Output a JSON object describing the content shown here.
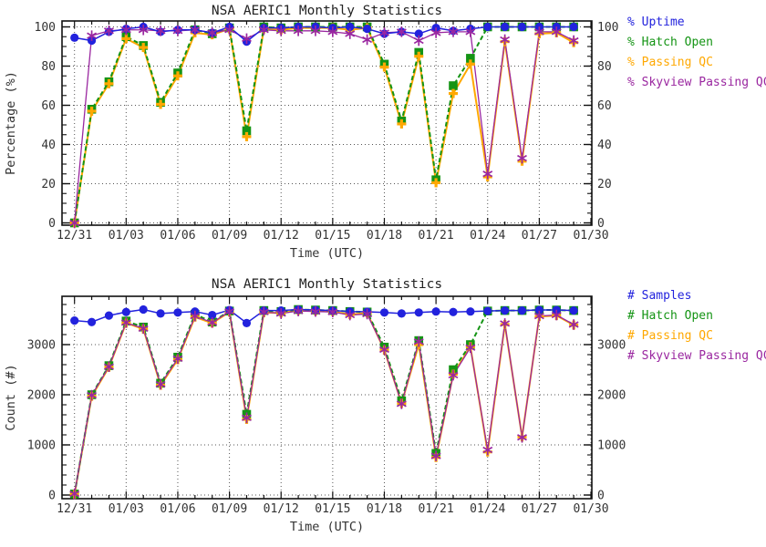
{
  "chart_data": {
    "type": "line",
    "x_categories": [
      "12/31",
      "01/01",
      "01/02",
      "01/03",
      "01/04",
      "01/05",
      "01/06",
      "01/07",
      "01/08",
      "01/09",
      "01/10",
      "01/11",
      "01/12",
      "01/13",
      "01/14",
      "01/15",
      "01/16",
      "01/17",
      "01/18",
      "01/19",
      "01/20",
      "01/21",
      "01/22",
      "01/23",
      "01/24",
      "01/25",
      "01/26",
      "01/27",
      "01/28",
      "01/29"
    ],
    "x_major_tick_labels": [
      "12/31",
      "01/03",
      "01/06",
      "01/09",
      "01/12",
      "01/15",
      "01/18",
      "01/21",
      "01/24",
      "01/27",
      "01/30"
    ],
    "x_major_tick_days": [
      0,
      3,
      6,
      9,
      12,
      15,
      18,
      21,
      24,
      27,
      30
    ],
    "charts": [
      {
        "title": "NSA AERIC1 Monthly Statistics",
        "xlabel": "Time (UTC)",
        "ylabel": "Percentage (%)",
        "y_major_ticks": [
          {
            "v": 0,
            "label": "0"
          },
          {
            "v": 20,
            "label": "20"
          },
          {
            "v": 40,
            "label": "40"
          },
          {
            "v": 60,
            "label": "60"
          },
          {
            "v": 80,
            "label": "80"
          },
          {
            "v": 100,
            "label": "100"
          }
        ],
        "y_minor_step": 5,
        "ylim": [
          0,
          103
        ],
        "grid": "dotted both axes",
        "legend_position": "right outside",
        "legend": [
          {
            "label": "% Uptime",
            "color": "#2222dd"
          },
          {
            "label": "% Hatch Open",
            "color": "#149414"
          },
          {
            "label": "% Passing QC",
            "color": "#ffa800"
          },
          {
            "label": "% Skyview Passing QC",
            "color": "#9a27a0"
          }
        ],
        "series": [
          {
            "name": "uptime",
            "color": "#2222dd",
            "marker": "circle",
            "dashed": false,
            "values": [
              94.5,
              93,
              97.5,
              99,
              100,
              97.5,
              98.5,
              98.5,
              97,
              100,
              92.5,
              99.5,
              99.5,
              100,
              100,
              99.5,
              100,
              99,
              96.5,
              97.5,
              96.5,
              99.5,
              98,
              99,
              100,
              100,
              100,
              100,
              100,
              100
            ]
          },
          {
            "name": "hatch_open",
            "color": "#149414",
            "marker": "square",
            "dashed": true,
            "values": [
              0,
              58,
              72,
              95,
              90.5,
              61.5,
              76.5,
              98.5,
              96.5,
              99.5,
              47,
              100,
              99.5,
              100,
              100,
              100,
              100,
              100,
              81,
              52,
              87,
              22,
              70,
              84,
              100,
              100,
              100,
              100,
              100,
              100
            ]
          },
          {
            "name": "passing_qc",
            "color": "#ffa800",
            "marker": "plus",
            "dashed": false,
            "values": [
              0,
              57,
              71,
              94,
              89.5,
              60.5,
              75,
              97,
              96,
              99,
              44,
              99,
              98.5,
              99.5,
              99.5,
              99.5,
              98.5,
              99.5,
              79.5,
              50.5,
              85,
              20.5,
              66,
              81,
              23.5,
              92.5,
              31.5,
              96.5,
              97,
              92
            ]
          },
          {
            "name": "skyview_passing_qc",
            "color": "#9a27a0",
            "marker": "star6",
            "dashed": false,
            "values": [
              0,
              95.5,
              98,
              98.5,
              98.5,
              98,
              98,
              98.5,
              97,
              98.5,
              94,
              98.5,
              98,
              98,
              98,
              97.5,
              96.5,
              93.5,
              97,
              97.5,
              93,
              97,
              97.5,
              97.5,
              25,
              93.5,
              33,
              97.5,
              97.5,
              93
            ]
          }
        ]
      },
      {
        "title": "NSA AERIC1 Monthly Statistics",
        "xlabel": "Time (UTC)",
        "ylabel": "Count (#)",
        "y_major_ticks": [
          {
            "v": 0,
            "label": "0"
          },
          {
            "v": 1000,
            "label": "1000"
          },
          {
            "v": 2000,
            "label": "2000"
          },
          {
            "v": 3000,
            "label": "3000"
          }
        ],
        "y_minor_step": 200,
        "ylim": [
          0,
          3960
        ],
        "grid": "dotted both axes",
        "legend_position": "right outside",
        "legend": [
          {
            "label": "# Samples",
            "color": "#2222dd"
          },
          {
            "label": "# Hatch Open",
            "color": "#149414"
          },
          {
            "label": "# Passing QC",
            "color": "#ffa800"
          },
          {
            "label": "# Skyview Passing QC",
            "color": "#9a27a0"
          }
        ],
        "series": [
          {
            "name": "samples",
            "color": "#2222dd",
            "marker": "circle",
            "dashed": false,
            "values": [
              3480,
              3450,
              3580,
              3650,
              3700,
              3620,
              3640,
              3660,
              3590,
              3690,
              3430,
              3680,
              3680,
              3700,
              3690,
              3680,
              3660,
              3655,
              3640,
              3620,
              3640,
              3660,
              3650,
              3660,
              3670,
              3680,
              3680,
              3690,
              3690,
              3680
            ]
          },
          {
            "name": "hatch_open",
            "color": "#149414",
            "marker": "square",
            "dashed": true,
            "values": [
              20,
              2000,
              2580,
              3470,
              3350,
              2230,
              2750,
              3605,
              3450,
              3670,
              1610,
              3680,
              3660,
              3700,
              3690,
              3680,
              3660,
              3650,
              2950,
              1880,
              3080,
              830,
              2500,
              3000,
              3670,
              3680,
              3680,
              3690,
              3690,
              3680
            ]
          },
          {
            "name": "passing_qc",
            "color": "#ffa800",
            "marker": "plus",
            "dashed": false,
            "values": [
              15,
              1970,
              2550,
              3430,
              3310,
              2190,
              2700,
              3550,
              3430,
              3650,
              1510,
              3640,
              3630,
              3680,
              3670,
              3660,
              3600,
              3630,
              2890,
              1830,
              3000,
              750,
              2410,
              2960,
              860,
              3400,
              1160,
              3560,
              3580,
              3390
            ]
          },
          {
            "name": "skyview_passing_qc",
            "color": "#9a27a0",
            "marker": "star6",
            "dashed": false,
            "values": [
              25,
              1990,
              2560,
              3440,
              3320,
              2210,
              2720,
              3570,
              3440,
              3660,
              1540,
              3650,
              3620,
              3670,
              3660,
              3650,
              3590,
              3610,
              2900,
              1820,
              3060,
              780,
              2390,
              2940,
              900,
              3420,
              1150,
              3570,
              3590,
              3400
            ]
          }
        ]
      }
    ]
  },
  "style_colors": {
    "frame": "#111111",
    "grid": "#555555",
    "text": "#333333",
    "title": "#222222"
  }
}
